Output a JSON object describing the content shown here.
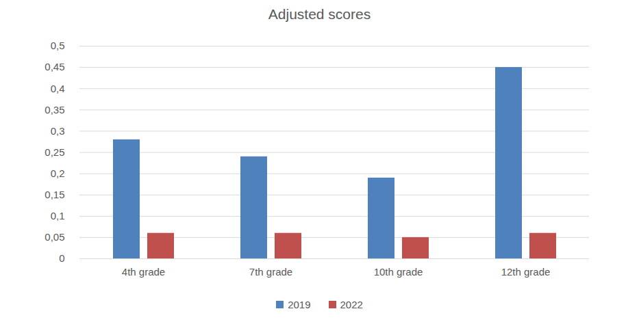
{
  "chart_data": {
    "type": "bar",
    "title": "Adjusted scores",
    "categories": [
      "4th grade",
      "7th grade",
      "10th grade",
      "12th grade"
    ],
    "series": [
      {
        "name": "2019",
        "color": "#4f81bd",
        "values": [
          0.28,
          0.24,
          0.19,
          0.45
        ]
      },
      {
        "name": "2022",
        "color": "#c0504d",
        "values": [
          0.06,
          0.06,
          0.05,
          0.06
        ]
      }
    ],
    "ylim": [
      0,
      0.5
    ],
    "yticks": [
      0,
      {
        "value": 0.05,
        "label": "0,05"
      },
      {
        "value": 0.1,
        "label": "0,1"
      },
      {
        "value": 0.15,
        "label": "0,15"
      },
      {
        "value": 0.2,
        "label": "0,2"
      },
      {
        "value": 0.25,
        "label": "0,25"
      },
      {
        "value": 0.3,
        "label": "0,3"
      },
      {
        "value": 0.35,
        "label": "0,35"
      },
      {
        "value": 0.4,
        "label": "0,4"
      },
      {
        "value": 0.45,
        "label": "0,45"
      },
      {
        "value": 0.5,
        "label": "0,5"
      }
    ],
    "grid": true,
    "legend": "bottom"
  }
}
